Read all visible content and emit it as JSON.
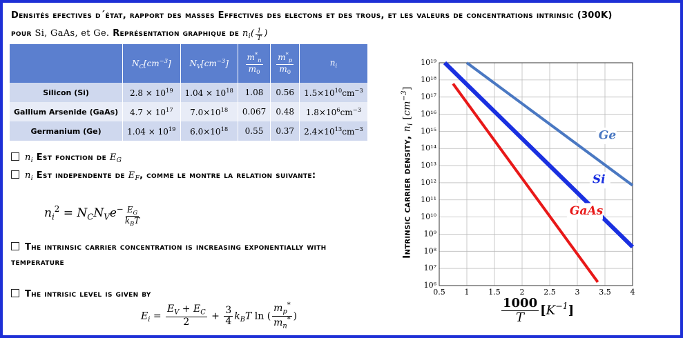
{
  "header": {
    "title": [
      {
        "text": "Densités efectives d´état, rapport des masses Effectives des electons et des trous, et les valeurs de concentrations intrinsic (300K) pour "
      },
      {
        "text": "Si, GaAs, et Ge.",
        "plain": 1
      },
      {
        "text": " Représentation graphique de "
      },
      {
        "text": "n",
        "i": 1
      },
      {
        "text": "i",
        "i": 1,
        "pos": "sub"
      },
      {
        "text": "(",
        "i": 1
      },
      {
        "num": [
          {
            "text": "1",
            "i": 1
          }
        ],
        "den": [
          {
            "text": "T",
            "i": 1
          }
        ],
        "pos": "sup"
      },
      {
        "text": ")",
        "i": 1
      }
    ]
  },
  "table": {
    "header": [
      [
        {
          "text": "N",
          "i": 1
        },
        {
          "text": "C",
          "i": 1,
          "pos": "sub"
        },
        {
          "text": "[cm",
          "i": 1
        },
        {
          "text": "−3",
          "i": 1,
          "pos": "sup"
        },
        {
          "text": "]",
          "i": 1
        }
      ],
      [
        {
          "text": "N",
          "i": 1
        },
        {
          "text": "V",
          "i": 1,
          "pos": "sub"
        },
        {
          "text": "[cm",
          "i": 1
        },
        {
          "text": "−3",
          "i": 1,
          "pos": "sup"
        },
        {
          "text": "]",
          "i": 1
        }
      ],
      [
        {
          "num": [
            {
              "text": "m",
              "i": 1
            },
            {
              "text": "*",
              "pos": "sup"
            },
            {
              "text": "n",
              "i": 1,
              "pos": "sub"
            }
          ],
          "den": [
            {
              "text": "m",
              "i": 1
            },
            {
              "text": "0",
              "pos": "sub"
            }
          ]
        }
      ],
      [
        {
          "num": [
            {
              "text": "m",
              "i": 1
            },
            {
              "text": "*",
              "pos": "sup"
            },
            {
              "text": "p",
              "i": 1,
              "pos": "sub"
            }
          ],
          "den": [
            {
              "text": "m",
              "i": 1
            },
            {
              "text": "0",
              "pos": "sub"
            }
          ]
        }
      ],
      [
        {
          "text": "n",
          "i": 1
        },
        {
          "text": "i",
          "i": 1,
          "pos": "sub"
        }
      ]
    ],
    "rows": [
      [
        [
          {
            "text": "Silicon (Si)"
          }
        ],
        [
          {
            "text": "2.8 × 10"
          },
          {
            "text": "19",
            "pos": "sup"
          }
        ],
        [
          {
            "text": "1.04 × 10"
          },
          {
            "text": "18",
            "pos": "sup"
          }
        ],
        [
          {
            "text": "1.08"
          }
        ],
        [
          {
            "text": "0.56"
          }
        ],
        [
          {
            "text": "1.5×10"
          },
          {
            "text": "10",
            "pos": "sup"
          },
          {
            "text": "cm"
          },
          {
            "text": "−3",
            "pos": "sup"
          }
        ]
      ],
      [
        [
          {
            "text": "Gallium Arsenide (GaAs)"
          }
        ],
        [
          {
            "text": "4.7 × 10"
          },
          {
            "text": "17",
            "pos": "sup"
          }
        ],
        [
          {
            "text": "7.0×10"
          },
          {
            "text": "18",
            "pos": "sup"
          }
        ],
        [
          {
            "text": "0.067"
          }
        ],
        [
          {
            "text": "0.48"
          }
        ],
        [
          {
            "text": "1.8×10"
          },
          {
            "text": "6",
            "pos": "sup"
          },
          {
            "text": "cm"
          },
          {
            "text": "−3",
            "pos": "sup"
          }
        ]
      ],
      [
        [
          {
            "text": "Germanium (Ge)"
          }
        ],
        [
          {
            "text": "1.04 × 10"
          },
          {
            "text": "19",
            "pos": "sup"
          }
        ],
        [
          {
            "text": "6.0×10"
          },
          {
            "text": "18",
            "pos": "sup"
          }
        ],
        [
          {
            "text": "0.55"
          }
        ],
        [
          {
            "text": "0.37"
          }
        ],
        [
          {
            "text": "2.4×10"
          },
          {
            "text": "13",
            "pos": "sup"
          },
          {
            "text": "cm"
          },
          {
            "text": "−3",
            "pos": "sup"
          }
        ]
      ]
    ]
  },
  "bullets": [
    [
      {
        "text": "n",
        "i": 1
      },
      {
        "text": "i",
        "i": 1,
        "pos": "sub"
      },
      {
        "text": " Est fonction de "
      },
      {
        "text": "E",
        "i": 1
      },
      {
        "text": "G",
        "i": 1,
        "pos": "sub"
      }
    ],
    [
      {
        "text": "n",
        "i": 1
      },
      {
        "text": "i",
        "i": 1,
        "pos": "sub"
      },
      {
        "text": " Est independente de "
      },
      {
        "text": "E",
        "i": 1
      },
      {
        "text": "F",
        "i": 1,
        "pos": "sub"
      },
      {
        "text": ", comme le montre la relation suivante:"
      }
    ],
    [
      {
        "text": "The intrinsic carrier concentration is increasing exponentially with temperature"
      }
    ],
    [
      {
        "text": "The intrisic level is given by"
      }
    ]
  ],
  "equations": [
    [
      {
        "text": "n",
        "i": 1
      },
      {
        "text": "i",
        "i": 1,
        "pos": "sub"
      },
      {
        "text": "2",
        "pos": "sup"
      },
      {
        "text": " =  "
      },
      {
        "text": "N",
        "i": 1
      },
      {
        "text": "C",
        "i": 1,
        "pos": "sub"
      },
      {
        "text": "N",
        "i": 1
      },
      {
        "text": "V",
        "i": 1,
        "pos": "sub"
      },
      {
        "text": "e",
        "i": 1
      },
      {
        "text": "−",
        "pos": "sup"
      },
      {
        "num": [
          {
            "text": "E",
            "i": 1
          },
          {
            "text": "G",
            "i": 1,
            "pos": "sub"
          }
        ],
        "den": [
          {
            "text": "k",
            "i": 1
          },
          {
            "text": "B",
            "i": 1,
            "pos": "sub"
          },
          {
            "text": "T",
            "i": 1
          }
        ],
        "pos": "sup"
      }
    ],
    [
      {
        "text": "E",
        "i": 1
      },
      {
        "text": "i",
        "i": 1,
        "pos": "sub"
      },
      {
        "text": " = "
      },
      {
        "num": [
          {
            "text": "E",
            "i": 1
          },
          {
            "text": "V",
            "i": 1,
            "pos": "sub"
          },
          {
            "text": " + "
          },
          {
            "text": "E",
            "i": 1
          },
          {
            "text": "C",
            "i": 1,
            "pos": "sub"
          }
        ],
        "den": [
          {
            "text": "2"
          }
        ]
      },
      {
        "text": " + "
      },
      {
        "num": [
          {
            "text": "3"
          }
        ],
        "den": [
          {
            "text": "4"
          }
        ]
      },
      {
        "text": "k",
        "i": 1
      },
      {
        "text": "B",
        "i": 1,
        "pos": "sub"
      },
      {
        "text": "T",
        "i": 1
      },
      {
        "text": " ln  ("
      },
      {
        "num": [
          {
            "text": "m",
            "i": 1
          },
          {
            "text": "p",
            "i": 1,
            "pos": "sub"
          },
          {
            "text": "*",
            "pos": "sup"
          }
        ],
        "den": [
          {
            "text": "m",
            "i": 1
          },
          {
            "text": "n",
            "i": 1,
            "pos": "sub"
          },
          {
            "text": "*",
            "pos": "sup"
          }
        ]
      },
      {
        "text": ")"
      }
    ]
  ],
  "chart_data": {
    "type": "line",
    "log_y": true,
    "grid": true,
    "y_label": [
      {
        "text": "Intrinsic carrier density, "
      },
      {
        "text": "n",
        "i": 1
      },
      {
        "text": "i",
        "i": 1,
        "pos": "sub"
      },
      {
        "text": " [",
        "plain": 1
      },
      {
        "text": "cm",
        "i": 1
      },
      {
        "text": "−3",
        "i": 1,
        "pos": "sup"
      },
      {
        "text": "]",
        "plain": 1
      }
    ],
    "x_label": [
      {
        "num": [
          {
            "text": "1000"
          }
        ],
        "den": [
          {
            "text": "T",
            "i": 1
          }
        ]
      },
      {
        "text": "["
      },
      {
        "text": "K",
        "i": 1
      },
      {
        "text": "−1",
        "i": 1,
        "pos": "sup"
      },
      {
        "text": "]"
      }
    ],
    "xlim": [
      0.5,
      4
    ],
    "xticks": [
      0.5,
      1,
      1.5,
      2,
      2.5,
      3,
      3.5,
      4
    ],
    "ylim": [
      1000000.0,
      1e+19
    ],
    "yticks": [
      {
        "value": 1000000.0,
        "label": "10⁶"
      },
      {
        "value": 10000000.0,
        "label": "10⁷"
      },
      {
        "value": 100000000.0,
        "label": "10⁸"
      },
      {
        "value": 1000000000.0,
        "label": "10⁹"
      },
      {
        "value": 10000000000.0,
        "label": "10¹⁰"
      },
      {
        "value": 100000000000.0,
        "label": "10¹¹"
      },
      {
        "value": 1000000000000.0,
        "label": "10¹²"
      },
      {
        "value": 10000000000000.0,
        "label": "10¹³"
      },
      {
        "value": 100000000000000.0,
        "label": "10¹⁴"
      },
      {
        "value": 1000000000000000.0,
        "label": "10¹⁵"
      },
      {
        "value": 1e+16,
        "label": "10¹⁶"
      },
      {
        "value": 1e+17,
        "label": "10¹⁷"
      },
      {
        "value": 1e+18,
        "label": "10¹⁸"
      },
      {
        "value": 1e+19,
        "label": "10¹⁹"
      }
    ],
    "series": [
      {
        "name": "Ge",
        "color": "#4a78c2",
        "x": [
          1,
          4
        ],
        "values": [
          1e+19,
          700000000000.0
        ]
      },
      {
        "name": "Si",
        "color": "#1a30e0",
        "x": [
          0.6,
          4
        ],
        "values": [
          1e+19,
          180000000.0
        ]
      },
      {
        "name": "GaAs",
        "color": "#e81818",
        "x": [
          0.75,
          3.37
        ],
        "values": [
          6e+17,
          1600000.0
        ]
      }
    ]
  }
}
